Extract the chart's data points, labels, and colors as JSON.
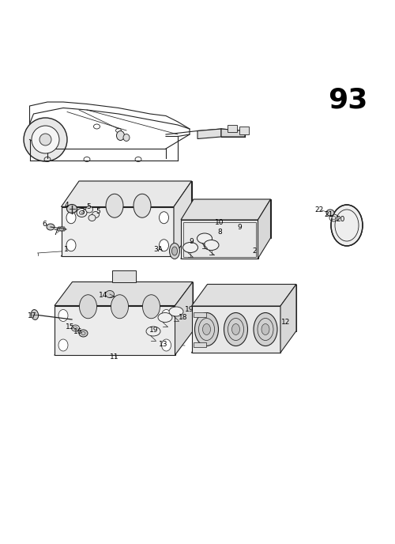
{
  "page_number": "93",
  "bg_color": "#ffffff",
  "line_color": "#222222",
  "fig_width": 5.0,
  "fig_height": 6.88,
  "dpi": 100
}
